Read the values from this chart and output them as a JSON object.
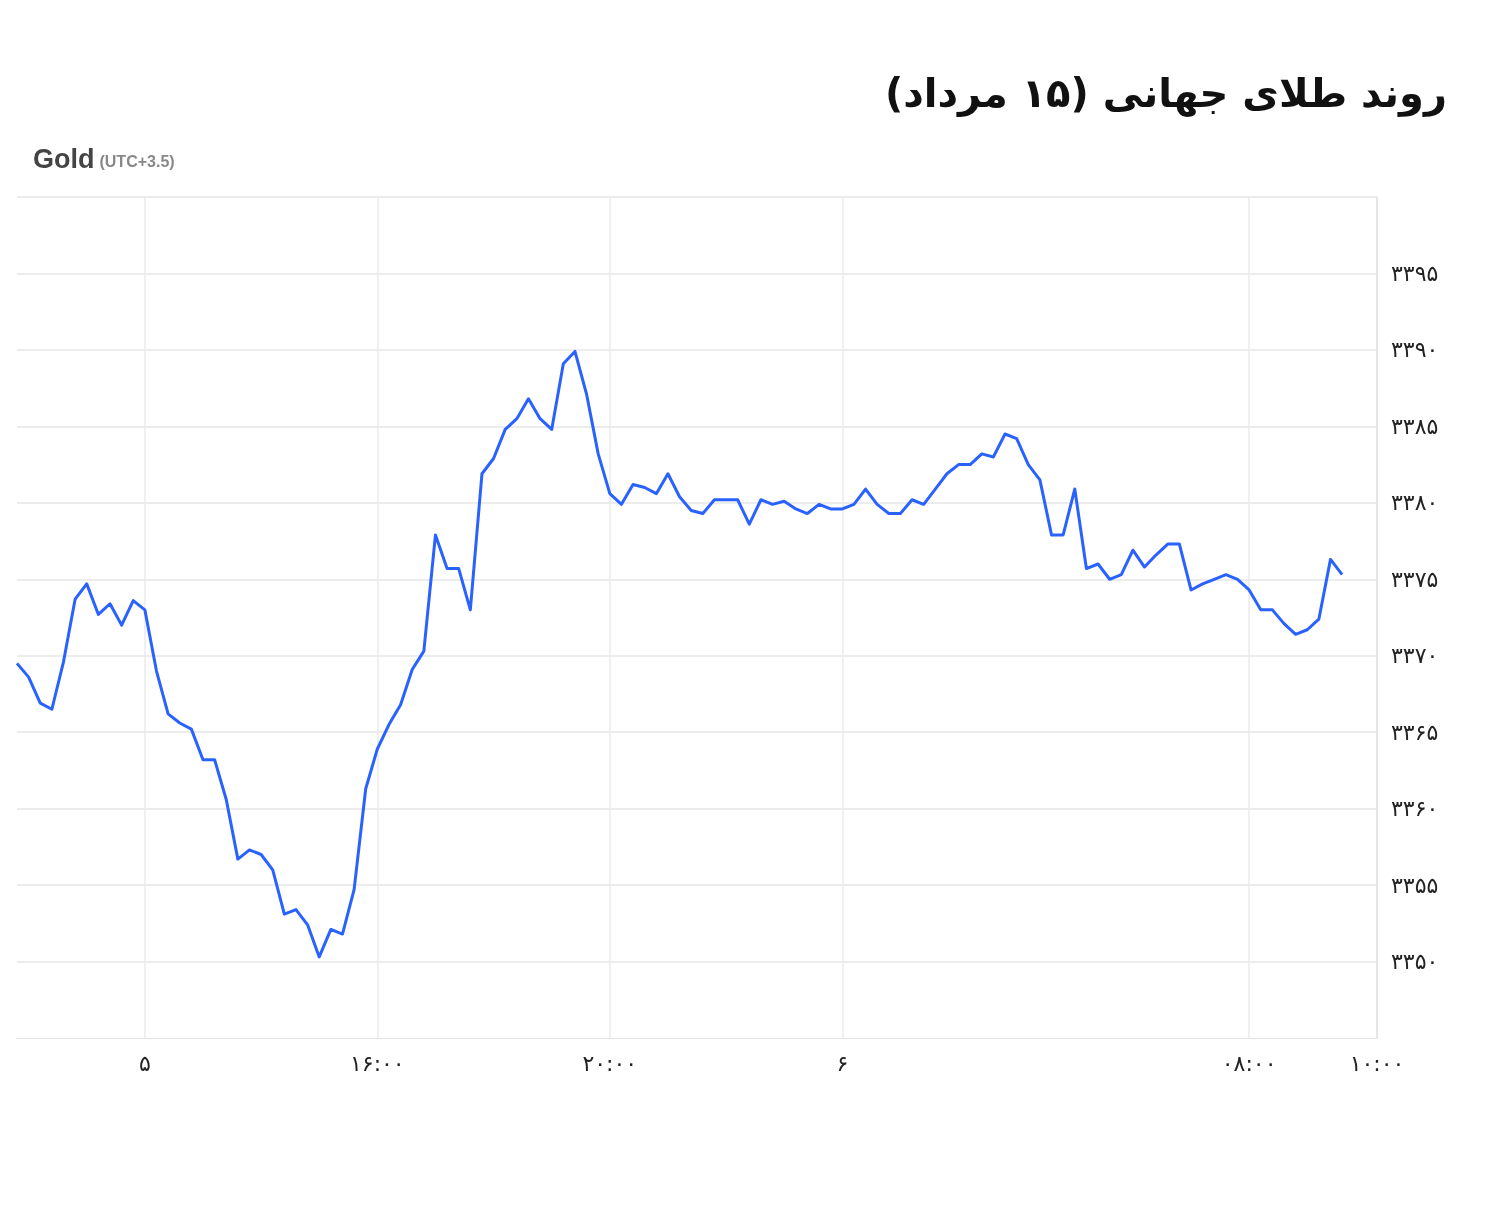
{
  "chart_data": {
    "type": "line",
    "title": "روند طلای جهانی (۱۵ مرداد)",
    "subtitle": "Gold (UTC+3.5)",
    "categories": [
      null,
      null,
      null,
      null,
      null,
      null,
      null,
      null,
      null,
      null,
      null,
      "۵",
      null,
      null,
      null,
      null,
      null,
      null,
      null,
      null,
      null,
      null,
      null,
      null,
      null,
      null,
      null,
      null,
      null,
      null,
      null,
      "۱۶:۰۰",
      null,
      null,
      null,
      null,
      null,
      null,
      null,
      null,
      null,
      null,
      null,
      null,
      null,
      null,
      null,
      null,
      null,
      null,
      null,
      "۲۰:۰۰",
      null,
      null,
      null,
      null,
      null,
      null,
      null,
      null,
      null,
      null,
      null,
      null,
      null,
      null,
      null,
      null,
      null,
      null,
      null,
      "۶",
      null,
      null,
      null,
      null,
      null,
      null,
      null,
      null,
      null,
      null,
      null,
      null,
      null,
      null,
      null,
      null,
      null,
      null,
      null,
      null,
      null,
      null,
      null,
      null,
      null,
      null,
      null,
      null,
      null,
      null,
      null,
      null,
      null,
      null,
      "۰۸:۰۰",
      null,
      null,
      null,
      null,
      null,
      null,
      null,
      null,
      null,
      null,
      "۱۰:۰۰"
    ],
    "series": [
      {
        "color": "#2962ff",
        "values": [
          3369.5,
          3368.6,
          3366.9,
          3366.5,
          3369.6,
          3373.7,
          3374.7,
          3372.7,
          3373.4,
          3372.0,
          3373.6,
          3373.0,
          3369.0,
          3366.2,
          3365.6,
          3365.2,
          3363.2,
          3363.2,
          3360.6,
          3356.7,
          3357.3,
          3357.0,
          3356.0,
          3353.1,
          3353.4,
          3352.4,
          3350.3,
          3352.1,
          3351.8,
          3354.7,
          3361.3,
          3363.9,
          3365.5,
          3366.8,
          3369.1,
          3370.3,
          3377.9,
          3375.7,
          3375.7,
          3373.0,
          3381.9,
          3382.9,
          3384.8,
          3385.5,
          3386.8,
          3385.5,
          3384.8,
          3389.1,
          3389.9,
          3387.1,
          3383.2,
          3380.6,
          3379.9,
          3381.2,
          3381.0,
          3380.6,
          3381.9,
          3380.4,
          3379.5,
          3379.3,
          3380.2,
          3380.2,
          3380.2,
          3378.6,
          3380.2,
          3379.9,
          3380.1,
          3379.6,
          3379.3,
          3379.9,
          3379.6,
          3379.6,
          3379.9,
          3380.9,
          3379.9,
          3379.3,
          3379.3,
          3380.2,
          3379.9,
          3380.9,
          3381.9,
          3382.5,
          3382.5,
          3383.2,
          3383.0,
          3384.5,
          3384.2,
          3382.5,
          3381.5,
          3377.9,
          3377.9,
          3380.9,
          3375.7,
          3376.0,
          3375.0,
          3375.3,
          3376.9,
          3375.8,
          3376.6,
          3377.3,
          3377.3,
          3374.3,
          3374.7,
          3375.0,
          3375.3,
          3375.0,
          3374.3,
          3373.0,
          3373.0,
          3372.1,
          3371.4,
          3371.7,
          3372.4,
          3376.3,
          3375.3,
          null,
          null,
          null
        ]
      }
    ],
    "ylim": [
      3345,
      3400
    ],
    "yticks": [
      {
        "value": 3350,
        "label": "۳۳۵۰"
      },
      {
        "value": 3355,
        "label": "۳۳۵۵"
      },
      {
        "value": 3360,
        "label": "۳۳۶۰"
      },
      {
        "value": 3365,
        "label": "۳۳۶۵"
      },
      {
        "value": 3370,
        "label": "۳۳۷۰"
      },
      {
        "value": 3375,
        "label": "۳۳۷۵"
      },
      {
        "value": 3380,
        "label": "۳۳۸۰"
      },
      {
        "value": 3385,
        "label": "۳۳۸۵"
      },
      {
        "value": 3390,
        "label": "۳۳۹۰"
      },
      {
        "value": 3395,
        "label": "۳۳۹۵"
      },
      {
        "value": 3400,
        "label": null
      }
    ],
    "grid": true,
    "marker": "none",
    "line_style": "solid"
  }
}
